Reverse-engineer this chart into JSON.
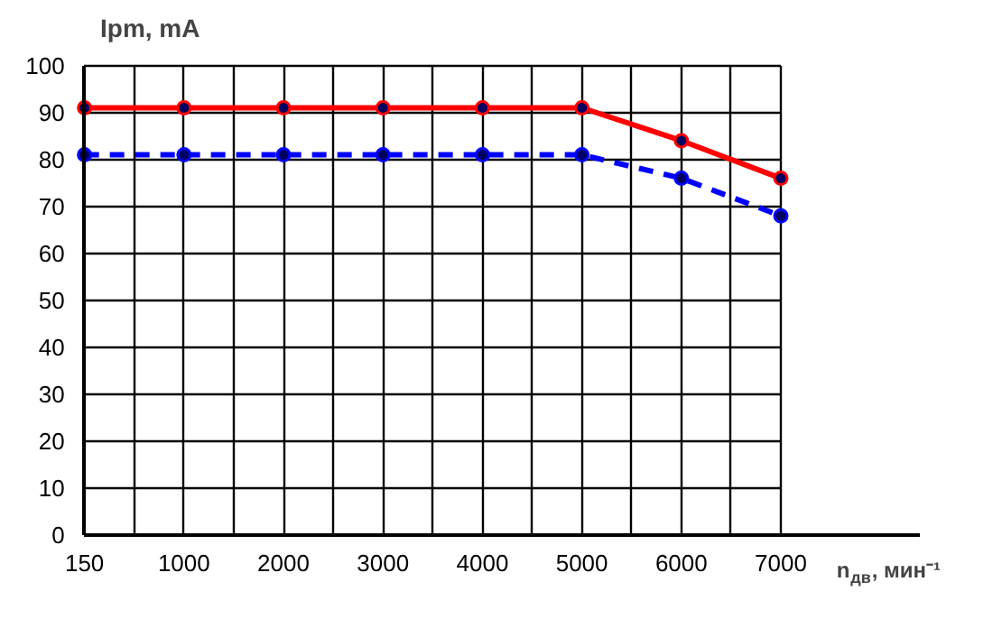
{
  "chart_data": {
    "type": "line",
    "ylabel": "Ipm, mA",
    "xlabel": "n$_{дв}$, мин⁻¹",
    "categories": [
      "150",
      "1000",
      "2000",
      "3000",
      "4000",
      "5000",
      "6000",
      "7000"
    ],
    "series": [
      {
        "color": "#ff0000",
        "line_style": "solid",
        "values": [
          91,
          91,
          91,
          91,
          91,
          91,
          84,
          76
        ]
      },
      {
        "color": "#0000ff",
        "line_style": "dashed",
        "values": [
          81,
          81,
          81,
          81,
          81,
          81,
          76,
          68
        ]
      }
    ],
    "ylim": [
      0,
      100
    ],
    "yticks": [
      0,
      10,
      20,
      30,
      40,
      50,
      60,
      70,
      80,
      90,
      100
    ],
    "grid": true,
    "marker": "circle"
  }
}
